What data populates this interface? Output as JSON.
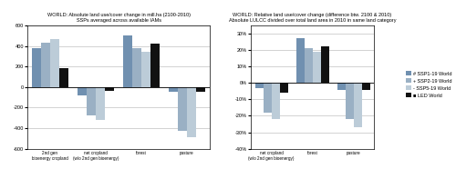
{
  "chart_data": [
    {
      "type": "bar",
      "title": "WORLD: Absolute land use/cover change in mill.ha (2100-2010)",
      "subtitle": "SSPs averaged across available IAMs",
      "categories": [
        "2nd gen\nbioenergy cropland",
        "net cropland\n(w/o 2nd gen bioenergy)",
        "forest",
        "pasture"
      ],
      "series": [
        {
          "color": "#7090b0",
          "values": [
            380,
            -80,
            500,
            -50
          ]
        },
        {
          "color": "#9ab0c4",
          "values": [
            430,
            -280,
            380,
            -430
          ]
        },
        {
          "color": "#bcccd8",
          "values": [
            470,
            -320,
            340,
            -490
          ]
        },
        {
          "color": "#111111",
          "values": [
            180,
            -40,
            420,
            -50
          ]
        }
      ],
      "ylim": [
        -600,
        600
      ],
      "yticks": [
        -600,
        -400,
        -200,
        0,
        200,
        400,
        600
      ],
      "grid": true
    },
    {
      "type": "bar",
      "title": "WORLD: Relative land use/cover change (difference btw. 2100 & 2010)",
      "subtitle": "Absolute LULCC divided over total land area in 2010 in same land category",
      "categories": [
        "net cropland\n(w/o 2nd gen bioenergy)",
        "forest",
        "pasture"
      ],
      "series": [
        {
          "name": "# SSP1-19 World",
          "color": "#7090b0",
          "values": [
            -3,
            27,
            -4
          ]
        },
        {
          "name": "+ SSP2-19 World",
          "color": "#9ab0c4",
          "values": [
            -18,
            21,
            -22
          ]
        },
        {
          "name": "- SSP5-19 World",
          "color": "#bcccd8",
          "values": [
            -22,
            19,
            -27
          ]
        },
        {
          "name": "■ LED World",
          "color": "#111111",
          "values": [
            -6,
            22,
            -4
          ]
        }
      ],
      "ylim": [
        -40,
        35
      ],
      "yticks": [
        {
          "value": -40,
          "label": "-40%"
        },
        {
          "value": -30,
          "label": "-30%"
        },
        {
          "value": -20,
          "label": "-20%"
        },
        {
          "value": -10,
          "label": "-10%"
        },
        {
          "value": 0,
          "label": "0%"
        },
        {
          "value": 10,
          "label": "10%"
        },
        {
          "value": 20,
          "label": "20%"
        },
        {
          "value": 30,
          "label": "30%"
        }
      ],
      "grid": true,
      "legend": "center right"
    }
  ]
}
